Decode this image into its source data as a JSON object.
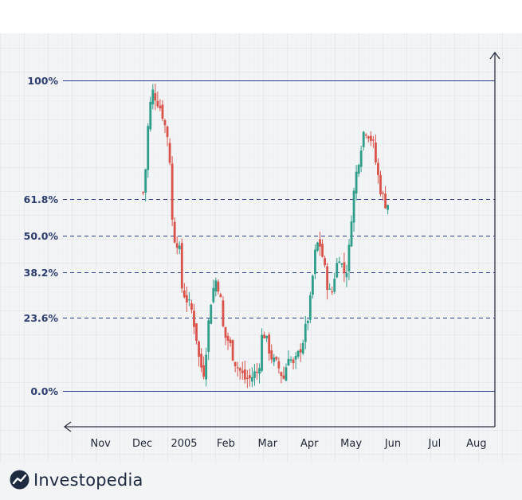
{
  "chart_data": {
    "type": "candlestick",
    "title": "",
    "xlabel": "",
    "ylabel": "",
    "ylim": [
      -8,
      108
    ],
    "grid": true,
    "x_ticks": [
      "Nov",
      "Dec",
      "2005",
      "Feb",
      "Mar",
      "Apr",
      "May",
      "Jun",
      "Jul",
      "Aug"
    ],
    "x_tick_positions": [
      -4.5,
      -3.5,
      -2.5,
      -1.5,
      -0.5,
      0.5,
      1.5,
      2.5,
      3.5,
      4.5
    ],
    "fib_levels": [
      {
        "label": "100%",
        "value": 100,
        "style": "solid"
      },
      {
        "label": "61.8%",
        "value": 61.8,
        "style": "dashed"
      },
      {
        "label": "50.0%",
        "value": 50.0,
        "style": "dashed"
      },
      {
        "label": "38.2%",
        "value": 38.2,
        "style": "dashed"
      },
      {
        "label": "23.6%",
        "value": 23.6,
        "style": "dashed"
      },
      {
        "label": "0.0%",
        "value": 0.0,
        "style": "solid"
      }
    ],
    "price_path": [
      [
        -3.48,
        64
      ],
      [
        -3.42,
        72
      ],
      [
        -3.36,
        86
      ],
      [
        -3.27,
        97
      ],
      [
        -3.15,
        94
      ],
      [
        -3.03,
        90
      ],
      [
        -2.95,
        85
      ],
      [
        -2.85,
        80
      ],
      [
        -2.82,
        60
      ],
      [
        -2.75,
        50
      ],
      [
        -2.62,
        47
      ],
      [
        -2.55,
        33
      ],
      [
        -2.45,
        30
      ],
      [
        -2.32,
        26
      ],
      [
        -2.22,
        19
      ],
      [
        -2.13,
        9
      ],
      [
        -2.02,
        6
      ],
      [
        -1.94,
        19
      ],
      [
        -1.85,
        30
      ],
      [
        -1.75,
        36
      ],
      [
        -1.65,
        33
      ],
      [
        -1.55,
        18
      ],
      [
        -1.42,
        16
      ],
      [
        -1.3,
        10
      ],
      [
        -1.18,
        7
      ],
      [
        -1.05,
        4
      ],
      [
        -0.92,
        4
      ],
      [
        -0.8,
        6
      ],
      [
        -0.72,
        6
      ],
      [
        -0.62,
        20
      ],
      [
        -0.5,
        15
      ],
      [
        -0.38,
        10
      ],
      [
        -0.25,
        8
      ],
      [
        -0.12,
        4
      ],
      [
        0.0,
        12
      ],
      [
        0.12,
        8
      ],
      [
        0.24,
        12
      ],
      [
        0.36,
        17
      ],
      [
        0.5,
        26
      ],
      [
        0.58,
        37
      ],
      [
        0.66,
        47
      ],
      [
        0.74,
        48
      ],
      [
        0.82,
        43
      ],
      [
        0.92,
        35
      ],
      [
        1.02,
        30
      ],
      [
        1.12,
        39
      ],
      [
        1.22,
        44
      ],
      [
        1.32,
        38
      ],
      [
        1.42,
        40
      ],
      [
        1.52,
        59
      ],
      [
        1.62,
        70
      ],
      [
        1.72,
        78
      ],
      [
        1.82,
        85
      ],
      [
        1.92,
        83
      ],
      [
        2.02,
        80
      ],
      [
        2.12,
        71
      ],
      [
        2.22,
        64
      ],
      [
        2.34,
        60
      ],
      [
        2.42,
        61
      ]
    ]
  },
  "brand": {
    "name": "Investopedia"
  },
  "colors": {
    "up": "#2e9e8a",
    "down": "#d9534a",
    "level_line": "#2c3e8c",
    "axis": "#2e3446",
    "label": "#2c3e70",
    "grid_minor": "#e9ecf1",
    "grid_major": "#d9dde5",
    "background": "#f3f4f6"
  }
}
